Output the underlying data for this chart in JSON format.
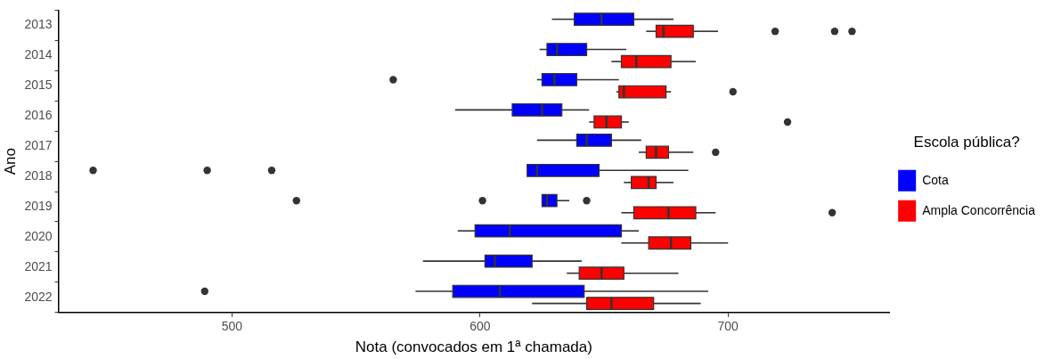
{
  "chart_data": {
    "type": "box",
    "orientation": "horizontal",
    "xlabel": "Nota (convocados em 1ª chamada)",
    "ylabel": "Ano",
    "legend_title": "Escola pública?",
    "legend": "right",
    "grid": false,
    "categories": [
      "2013",
      "2014",
      "2015",
      "2016",
      "2017",
      "2018",
      "2019",
      "2020",
      "2021",
      "2022"
    ],
    "xlim": [
      430,
      765
    ],
    "xticks": [
      500,
      600,
      700
    ],
    "series": [
      {
        "name": "Cota",
        "color": "#0000ff",
        "boxes": [
          {
            "low": 629,
            "q1": 638,
            "median": 649,
            "q3": 662,
            "high": 678
          },
          {
            "low": 624,
            "q1": 627,
            "median": 631,
            "q3": 643,
            "high": 659
          },
          {
            "low": 623,
            "q1": 625,
            "median": 630,
            "q3": 639,
            "high": 656,
            "outliers": [
              565
            ]
          },
          {
            "low": 590,
            "q1": 613,
            "median": 625,
            "q3": 633,
            "high": 644
          },
          {
            "low": 623,
            "q1": 639,
            "median": 643,
            "q3": 653,
            "high": 665
          },
          {
            "low": 619,
            "q1": 619,
            "median": 623,
            "q3": 648,
            "high": 684,
            "outliers": [
              444,
              490,
              516
            ]
          },
          {
            "low": 625,
            "q1": 625,
            "median": 627,
            "q3": 631,
            "high": 636,
            "outliers": [
              526,
              601,
              643
            ]
          },
          {
            "low": 591,
            "q1": 598,
            "median": 612,
            "q3": 657,
            "high": 664
          },
          {
            "low": 577,
            "q1": 602,
            "median": 606,
            "q3": 621,
            "high": 641
          },
          {
            "low": 574,
            "q1": 589,
            "median": 608,
            "q3": 642,
            "high": 692,
            "outliers": [
              489
            ]
          }
        ]
      },
      {
        "name": "Ampla Concorrência",
        "color": "#ff0000",
        "boxes": [
          {
            "low": 667,
            "q1": 671,
            "median": 674,
            "q3": 686,
            "high": 696,
            "outliers": [
              719,
              743,
              750
            ]
          },
          {
            "low": 653,
            "q1": 657,
            "median": 663,
            "q3": 677,
            "high": 687
          },
          {
            "low": 655,
            "q1": 656,
            "median": 658,
            "q3": 675,
            "high": 677,
            "outliers": [
              702
            ]
          },
          {
            "low": 644,
            "q1": 646,
            "median": 651,
            "q3": 657,
            "high": 660,
            "outliers": [
              724
            ]
          },
          {
            "low": 664,
            "q1": 667,
            "median": 671,
            "q3": 676,
            "high": 686,
            "outliers": [
              695
            ]
          },
          {
            "low": 658,
            "q1": 661,
            "median": 668,
            "q3": 671,
            "high": 678
          },
          {
            "low": 657,
            "q1": 662,
            "median": 676,
            "q3": 687,
            "high": 695,
            "outliers": [
              742
            ]
          },
          {
            "low": 657,
            "q1": 668,
            "median": 677,
            "q3": 685,
            "high": 700
          },
          {
            "low": 635,
            "q1": 640,
            "median": 649,
            "q3": 658,
            "high": 680
          },
          {
            "low": 621,
            "q1": 643,
            "median": 653,
            "q3": 670,
            "high": 689
          }
        ]
      }
    ]
  }
}
